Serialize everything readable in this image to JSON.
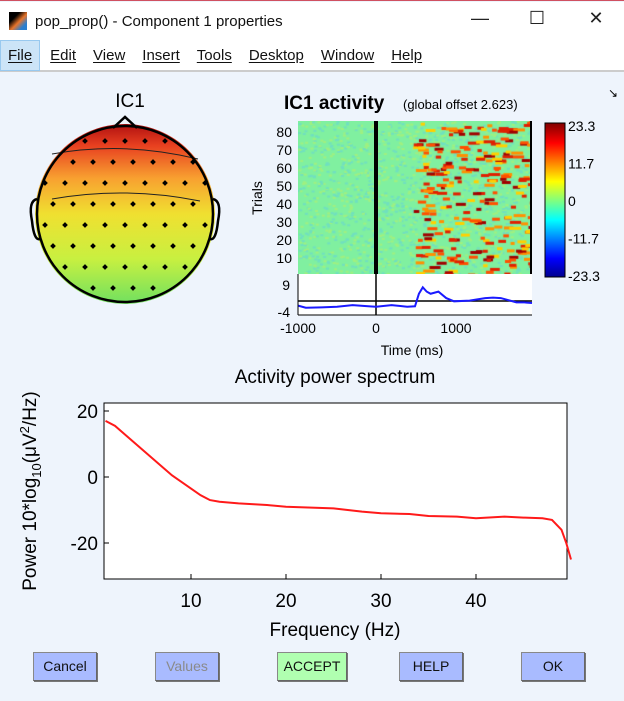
{
  "window": {
    "title": "pop_prop() - Component 1 properties",
    "minimize": "—",
    "maximize": "☐",
    "close": "✕"
  },
  "menu": [
    {
      "label": "File"
    },
    {
      "label": "Edit"
    },
    {
      "label": "View"
    },
    {
      "label": "Insert"
    },
    {
      "label": "Tools"
    },
    {
      "label": "Desktop"
    },
    {
      "label": "Window"
    },
    {
      "label": "Help"
    }
  ],
  "dock_icon": "↘",
  "chart_data": [
    {
      "type": "topoplot",
      "title": "IC1",
      "colors": {
        "top": "#b01010",
        "mid": "#f0e020",
        "bottom": "#70e060"
      }
    },
    {
      "type": "heatmap",
      "title": "IC1 activity",
      "subtitle": "(global offset 2.623)",
      "ylabel": "Trials",
      "yticks": [
        "10",
        "20",
        "30",
        "40",
        "50",
        "60",
        "70",
        "80"
      ],
      "ylim": [
        1,
        86
      ],
      "colorbar": {
        "ticks": [
          "23.3",
          "11.7",
          "0",
          "-11.7",
          "-23.3"
        ],
        "clim": [
          -23.3,
          23.3
        ],
        "colormap": "jet"
      }
    },
    {
      "type": "line",
      "xlabel": "Time (ms)",
      "xticks": [
        "-1000",
        "0",
        "1000"
      ],
      "xlim": [
        -1000,
        2000
      ],
      "yticks": [
        "9",
        "-4"
      ],
      "ylim": [
        -4,
        9
      ],
      "color": "#1a1aff",
      "x": [
        -1000,
        -900,
        -700,
        -500,
        -300,
        -100,
        0,
        200,
        400,
        500,
        550,
        600,
        650,
        700,
        800,
        900,
        1000,
        1200,
        1400,
        1500,
        1600,
        1800,
        1900,
        2000
      ],
      "y": [
        -1.5,
        -2.5,
        -2.3,
        -2,
        -1.3,
        -1.8,
        -2,
        -1.3,
        -2,
        -1.8,
        4,
        7,
        5,
        4,
        5,
        2,
        0.5,
        0.8,
        2,
        2.2,
        2,
        0,
        0,
        -0.3
      ]
    },
    {
      "type": "line",
      "title": "Activity power spectrum",
      "xlabel": "Frequency (Hz)",
      "ylabel": "Power 10*log10(μV2/Hz)",
      "xticks": [
        "10",
        "20",
        "30",
        "40"
      ],
      "yticks": [
        "20",
        "0",
        "-20"
      ],
      "xlim": [
        1,
        50
      ],
      "ylim": [
        -31,
        22.5
      ],
      "color": "#ff1a1a",
      "x": [
        1,
        2,
        3,
        4,
        5,
        6,
        7,
        8,
        9,
        10,
        11,
        12,
        13,
        15,
        18,
        20,
        25,
        28,
        30,
        33,
        35,
        38,
        40,
        43,
        45,
        47,
        48,
        49,
        49.5,
        50
      ],
      "y": [
        17,
        15.5,
        13,
        10.5,
        8,
        5.5,
        3,
        0.5,
        -1.5,
        -3.5,
        -5.5,
        -7,
        -7.5,
        -8,
        -8.5,
        -9,
        -9.5,
        -10.5,
        -11,
        -11.2,
        -11.8,
        -12,
        -12.5,
        -12,
        -12.3,
        -12.5,
        -13,
        -16,
        -20,
        -25
      ]
    }
  ],
  "buttons": {
    "cancel": "Cancel",
    "values": "Values",
    "accept": "ACCEPT",
    "help": "HELP",
    "ok": "OK"
  },
  "button_colors": {
    "default": "#a9bbff",
    "accept": "#b0ffb0",
    "disabled_text": "#8a8a8a"
  }
}
